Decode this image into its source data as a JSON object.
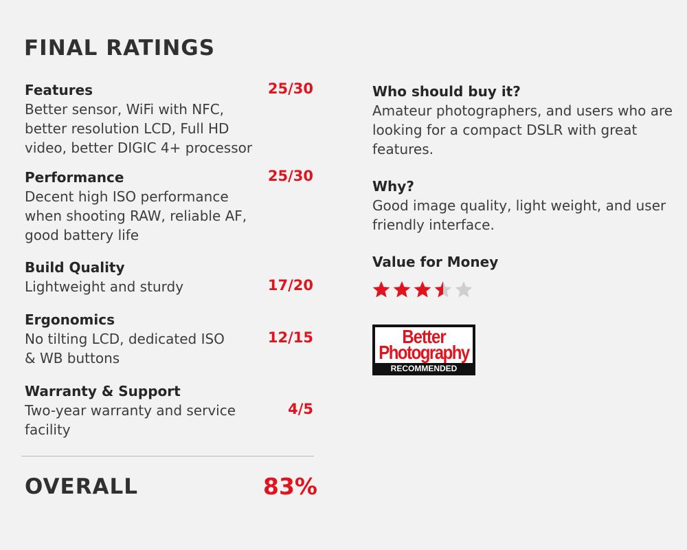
{
  "heading": "FINAL RATINGS",
  "ratings": [
    {
      "label": "Features",
      "score": "25/30",
      "desc": "Better sensor, WiFi with NFC, better resolution LCD, Full HD video, better DIGIC 4+ processor"
    },
    {
      "label": "Performance",
      "score": "25/30",
      "desc": "Decent high ISO performance when shooting RAW, reliable AF, good battery life"
    },
    {
      "label": "Build Quality",
      "score": "17/20",
      "desc": "Lightweight and sturdy"
    },
    {
      "label": "Ergonomics",
      "score": "12/15",
      "desc": "No tilting LCD, dedicated ISO & WB buttons"
    },
    {
      "label": "Warranty & Support",
      "score": "4/5",
      "desc": "Two-year warranty and service facility"
    }
  ],
  "overall": {
    "label": "OVERALL",
    "value": "83%"
  },
  "who": {
    "question": "Who should buy it?",
    "answer": "Amateur photographers, and users who are looking for a compact DSLR with great features."
  },
  "why": {
    "question": "Why?",
    "answer": "Good image quality, light weight, and user friendly interface."
  },
  "value_for_money": {
    "label": "Value for Money",
    "stars": 3.5,
    "max_stars": 5,
    "star_color": "#e0141e",
    "empty_color": "#cfcfcf"
  },
  "badge": {
    "line1": "Better",
    "line2": "Photography",
    "line3": "RECOMMENDED",
    "brand_color": "#e0141e"
  },
  "colors": {
    "accent": "#e0141e",
    "background": "#f2f2f2",
    "text": "#2b2b2b"
  }
}
